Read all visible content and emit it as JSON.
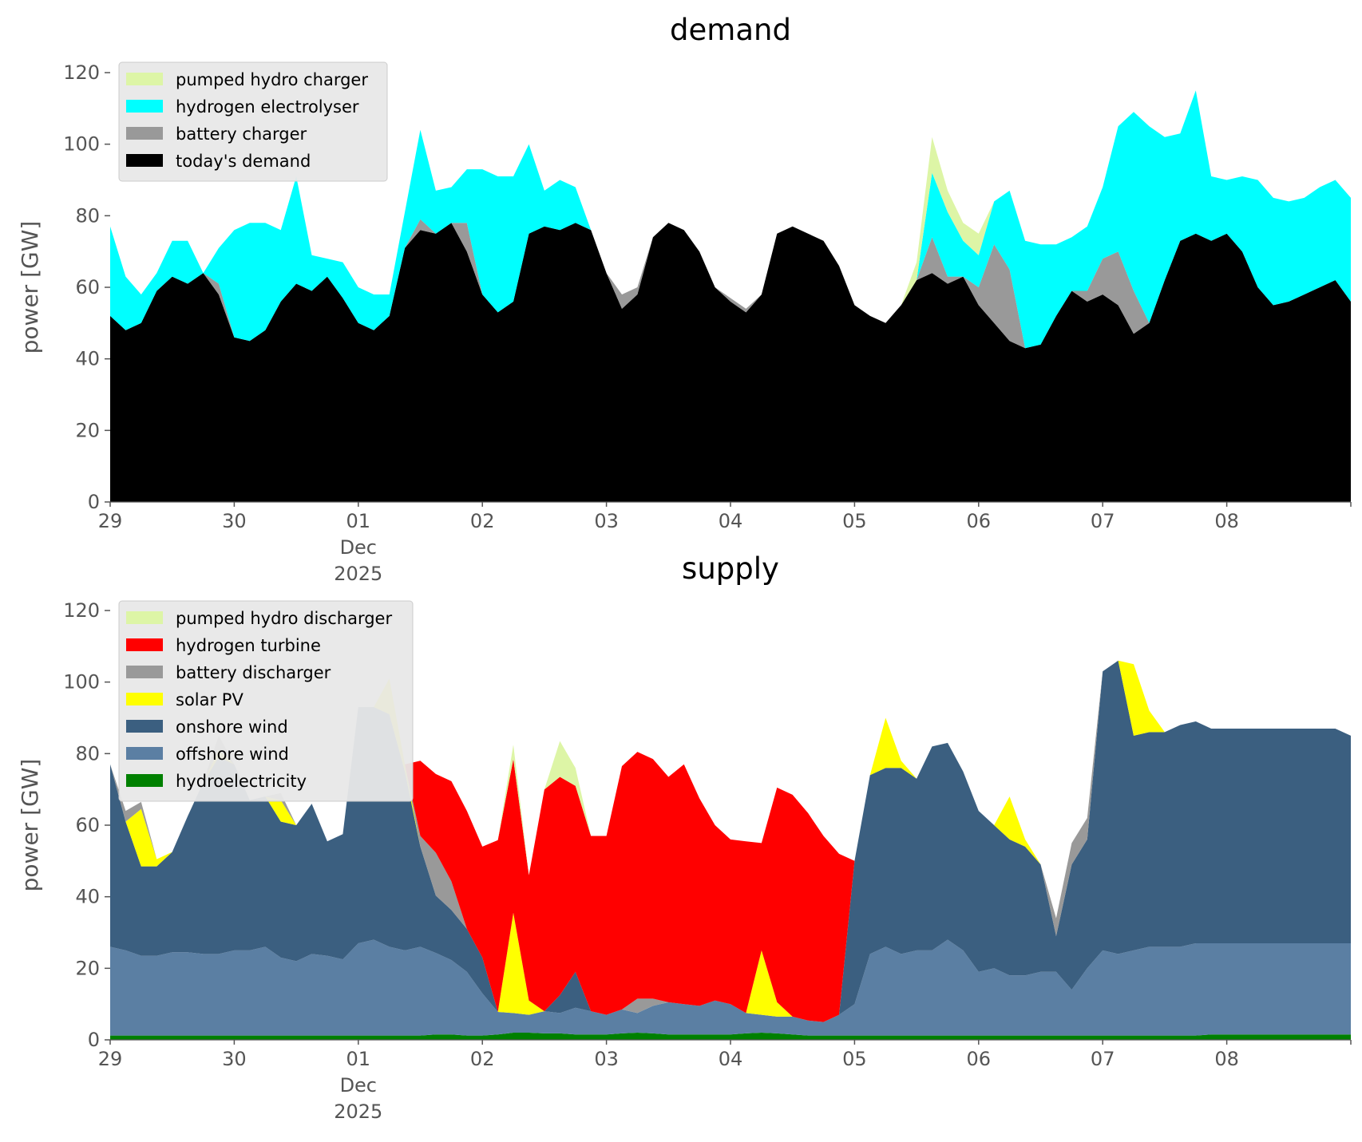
{
  "chart_data": [
    {
      "type": "area",
      "stacked": true,
      "title": "demand",
      "ylabel": "power [GW]",
      "xlabel": "",
      "ylim": [
        0,
        120
      ],
      "yticks": [
        0,
        20,
        40,
        60,
        80,
        100,
        120
      ],
      "xlim": [
        0,
        10
      ],
      "xtick_labels": [
        "29",
        "30",
        "01",
        "02",
        "03",
        "04",
        "05",
        "06",
        "07",
        "08"
      ],
      "xaxis_month": "Dec",
      "xaxis_year": "2025",
      "x_unit": "days since 29 Nov 2025 00:00",
      "grid": false,
      "legend_position": "top-left",
      "legend": [
        "pumped hydro charger",
        "hydrogen electrolyser",
        "battery charger",
        "today's demand"
      ],
      "x": [
        0,
        0.125,
        0.25,
        0.375,
        0.5,
        0.625,
        0.75,
        0.875,
        1,
        1.125,
        1.25,
        1.375,
        1.5,
        1.625,
        1.75,
        1.875,
        2,
        2.125,
        2.25,
        2.375,
        2.5,
        2.625,
        2.75,
        2.875,
        3,
        3.125,
        3.25,
        3.375,
        3.5,
        3.625,
        3.75,
        3.875,
        4,
        4.125,
        4.25,
        4.375,
        4.5,
        4.625,
        4.75,
        4.875,
        5,
        5.125,
        5.25,
        5.375,
        5.5,
        5.625,
        5.75,
        5.875,
        6,
        6.125,
        6.25,
        6.375,
        6.5,
        6.625,
        6.75,
        6.875,
        7,
        7.125,
        7.25,
        7.375,
        7.5,
        7.625,
        7.75,
        7.875,
        8,
        8.125,
        8.25,
        8.375,
        8.5,
        8.625,
        8.75,
        8.875,
        9,
        9.125,
        9.25,
        9.375,
        9.5,
        9.625,
        9.75,
        9.875,
        10
      ],
      "series": [
        {
          "name": "today's demand",
          "color": "#000000",
          "values": [
            52,
            48,
            50,
            59,
            63,
            61,
            64,
            58,
            46,
            45,
            48,
            56,
            61,
            59,
            63,
            57,
            50,
            48,
            52,
            71,
            76,
            75,
            78,
            70,
            58,
            53,
            56,
            75,
            77,
            76,
            78,
            76,
            64,
            54,
            58,
            74,
            78,
            76,
            70,
            60,
            56,
            53,
            58,
            75,
            77,
            75,
            73,
            66,
            55,
            52,
            50,
            55,
            62,
            64,
            61,
            63,
            55,
            50,
            45,
            43,
            44,
            52,
            59,
            56,
            58,
            55,
            47,
            50,
            62,
            73,
            75,
            73,
            75,
            70,
            60,
            55,
            56,
            58,
            60,
            62,
            56
          ]
        },
        {
          "name": "battery charger",
          "color": "#999999",
          "values": [
            0,
            0,
            0,
            0,
            0,
            0,
            0,
            3,
            0,
            0,
            0,
            0,
            0,
            0,
            0,
            0,
            0,
            0,
            0,
            0,
            3,
            0,
            0,
            8,
            0,
            0,
            0,
            0,
            0,
            0,
            0,
            0,
            0,
            4,
            2,
            0,
            0,
            0,
            0,
            0,
            1,
            1,
            0,
            0,
            0,
            0,
            0,
            0,
            0,
            0,
            0,
            0,
            0,
            10,
            2,
            0,
            5,
            22,
            20,
            0,
            0,
            0,
            0,
            3,
            10,
            15,
            12,
            0,
            0,
            0,
            0,
            0,
            0,
            0,
            0,
            0,
            0,
            0,
            0,
            0,
            0
          ]
        },
        {
          "name": "hydrogen electrolyser",
          "color": "#00ffff",
          "values": [
            25,
            15,
            8,
            5,
            10,
            12,
            0,
            10,
            30,
            33,
            30,
            20,
            30,
            10,
            5,
            10,
            10,
            10,
            6,
            10,
            25,
            12,
            10,
            15,
            35,
            38,
            35,
            25,
            10,
            14,
            10,
            0,
            0,
            0,
            0,
            0,
            0,
            0,
            0,
            0,
            0,
            0,
            0,
            0,
            0,
            0,
            0,
            0,
            0,
            0,
            0,
            0,
            0,
            18,
            18,
            10,
            9,
            12,
            22,
            30,
            28,
            20,
            15,
            18,
            20,
            35,
            50,
            55,
            40,
            30,
            40,
            18,
            15,
            21,
            30,
            30,
            28,
            27,
            28,
            28,
            29
          ]
        },
        {
          "name": "pumped hydro charger",
          "color": "#ddf5a6",
          "values": [
            0,
            0,
            0,
            0,
            0,
            0,
            0,
            0,
            0,
            0,
            0,
            0,
            0,
            0,
            0,
            0,
            0,
            0,
            0,
            0,
            0,
            0,
            0,
            0,
            0,
            0,
            0,
            0,
            0,
            0,
            0,
            0,
            0,
            0,
            0,
            0,
            0,
            0,
            0,
            0,
            0,
            0,
            0,
            0,
            0,
            0,
            0,
            0,
            0,
            0,
            0,
            0,
            5,
            10,
            6,
            5,
            6,
            0,
            0,
            0,
            0,
            0,
            0,
            0,
            0,
            0,
            0,
            0,
            0,
            0,
            0,
            0,
            0,
            0,
            0,
            0,
            0,
            0,
            0,
            0,
            0
          ]
        }
      ]
    },
    {
      "type": "area",
      "stacked": true,
      "title": "supply",
      "ylabel": "power [GW]",
      "xlabel": "",
      "ylim": [
        0,
        120
      ],
      "yticks": [
        0,
        20,
        40,
        60,
        80,
        100,
        120
      ],
      "xlim": [
        0,
        10
      ],
      "xtick_labels": [
        "29",
        "30",
        "01",
        "02",
        "03",
        "04",
        "05",
        "06",
        "07",
        "08"
      ],
      "xaxis_month": "Dec",
      "xaxis_year": "2025",
      "x_unit": "days since 29 Nov 2025 00:00",
      "grid": false,
      "legend_position": "top-left",
      "legend": [
        "pumped hydro discharger",
        "hydrogen turbine",
        "battery discharger",
        "solar PV",
        "onshore wind",
        "offshore wind",
        "hydroelectricity"
      ],
      "x": [
        0,
        0.125,
        0.25,
        0.375,
        0.5,
        0.625,
        0.75,
        0.875,
        1,
        1.125,
        1.25,
        1.375,
        1.5,
        1.625,
        1.75,
        1.875,
        2,
        2.125,
        2.25,
        2.375,
        2.5,
        2.625,
        2.75,
        2.875,
        3,
        3.125,
        3.25,
        3.375,
        3.5,
        3.625,
        3.75,
        3.875,
        4,
        4.125,
        4.25,
        4.375,
        4.5,
        4.625,
        4.75,
        4.875,
        5,
        5.125,
        5.25,
        5.375,
        5.5,
        5.625,
        5.75,
        5.875,
        6,
        6.125,
        6.25,
        6.375,
        6.5,
        6.625,
        6.75,
        6.875,
        7,
        7.125,
        7.25,
        7.375,
        7.5,
        7.625,
        7.75,
        7.875,
        8,
        8.125,
        8.25,
        8.375,
        8.5,
        8.625,
        8.75,
        8.875,
        9,
        9.125,
        9.25,
        9.375,
        9.5,
        9.625,
        9.75,
        9.875,
        10
      ],
      "series": [
        {
          "name": "hydroelectricity",
          "color": "#008000",
          "values": [
            1.2,
            1.2,
            1.2,
            1.2,
            1.2,
            1.2,
            1.2,
            1.2,
            1.2,
            1.2,
            1.2,
            1.2,
            1.2,
            1.2,
            1.2,
            1.2,
            1.2,
            1.2,
            1.2,
            1.2,
            1.2,
            1.5,
            1.5,
            1.2,
            1.2,
            1.5,
            2,
            2,
            1.8,
            1.8,
            1.5,
            1.5,
            1.5,
            1.8,
            2,
            1.8,
            1.5,
            1.5,
            1.5,
            1.5,
            1.5,
            1.8,
            2,
            1.8,
            1.5,
            1.2,
            1.2,
            1.2,
            1.2,
            1.2,
            1.2,
            1.2,
            1.2,
            1.2,
            1.2,
            1.2,
            1.2,
            1.2,
            1.2,
            1.2,
            1.2,
            1.2,
            1.2,
            1.2,
            1.2,
            1.2,
            1.2,
            1.2,
            1.2,
            1.2,
            1.2,
            1.5,
            1.5,
            1.5,
            1.5,
            1.5,
            1.5,
            1.5,
            1.5,
            1.5,
            1.5
          ]
        },
        {
          "name": "offshore wind",
          "color": "#5b7fa3",
          "values": [
            24.8,
            23.8,
            22.3,
            22.3,
            23.3,
            23.3,
            22.8,
            22.8,
            23.8,
            23.8,
            24.8,
            21.8,
            20.8,
            22.8,
            22.3,
            21.3,
            25.8,
            26.8,
            24.8,
            23.8,
            24.8,
            22.8,
            20.8,
            17.8,
            11.8,
            6.3,
            5.5,
            5,
            6.2,
            5.7,
            7.5,
            6.5,
            5.5,
            6.7,
            5.5,
            7.7,
            9,
            8.5,
            8,
            9.5,
            8.5,
            5.7,
            5,
            4.7,
            5,
            4.2,
            3.8,
            5.8,
            8.8,
            22.8,
            24.8,
            22.8,
            23.8,
            23.8,
            26.8,
            23.8,
            17.8,
            18.8,
            16.8,
            16.8,
            17.8,
            17.8,
            12.8,
            18.8,
            23.8,
            22.8,
            23.8,
            24.8,
            24.8,
            24.8,
            25.8,
            25.5,
            25.5,
            25.5,
            25.5,
            25.5,
            25.5,
            25.5,
            25.5,
            25.5,
            25.5
          ]
        },
        {
          "name": "onshore wind",
          "color": "#3b5f80",
          "values": [
            51,
            36,
            25,
            25,
            28,
            38,
            48,
            55,
            52,
            42,
            42,
            38,
            38,
            42,
            32,
            35,
            66,
            65,
            65,
            50,
            28,
            16,
            14,
            12,
            10,
            0,
            0,
            0,
            0,
            5,
            10,
            0,
            0,
            0,
            0,
            0,
            0,
            0,
            0,
            0,
            0,
            0,
            0,
            0,
            0,
            0,
            0,
            0,
            40,
            50,
            50,
            52,
            48,
            57,
            55,
            50,
            45,
            40,
            38,
            36,
            30,
            10,
            35,
            36,
            78,
            82,
            60,
            60,
            60,
            62,
            62,
            60,
            60,
            60,
            60,
            60,
            60,
            60,
            60,
            60,
            58
          ]
        },
        {
          "name": "solar PV",
          "color": "#ffff00",
          "values": [
            0,
            0,
            16,
            2,
            0,
            0,
            0,
            2,
            0,
            0,
            0,
            6,
            0,
            0,
            0,
            0,
            0,
            0,
            10,
            2,
            0,
            0,
            0,
            0,
            0,
            0,
            28,
            4,
            0,
            0,
            0,
            0,
            0,
            0,
            0,
            0,
            0,
            0,
            0,
            0,
            0,
            0,
            18,
            4,
            0,
            0,
            0,
            0,
            0,
            0,
            14,
            2,
            0,
            0,
            0,
            0,
            0,
            0,
            12,
            2,
            0,
            0,
            0,
            0,
            0,
            0,
            20,
            6,
            0,
            0,
            0,
            0,
            0,
            0,
            0,
            0,
            0,
            0,
            0,
            0,
            0
          ]
        },
        {
          "name": "battery discharger",
          "color": "#999999",
          "values": [
            0,
            3,
            2,
            0,
            0,
            0,
            0,
            4,
            0,
            0,
            0,
            2,
            0,
            0,
            0,
            0,
            0,
            0,
            0,
            0,
            3,
            12,
            8,
            0,
            0,
            0,
            0,
            0,
            0,
            0,
            0,
            0,
            0,
            0,
            4,
            2,
            0,
            0,
            0,
            0,
            0,
            0,
            0,
            0,
            0,
            0,
            0,
            0,
            0,
            0,
            0,
            0,
            0,
            0,
            0,
            0,
            0,
            0,
            0,
            0,
            0,
            5,
            6,
            6,
            0,
            0,
            0,
            0,
            0,
            0,
            0,
            0,
            0,
            0,
            0,
            0,
            0,
            0,
            0,
            0,
            0
          ]
        },
        {
          "name": "hydrogen turbine",
          "color": "#ff0000",
          "values": [
            0,
            0,
            0,
            0,
            0,
            0,
            0,
            0,
            0,
            0,
            0,
            0,
            0,
            0,
            0,
            0,
            0,
            0,
            0,
            0,
            21,
            22,
            28,
            33,
            31,
            48,
            43,
            35,
            62,
            61,
            52,
            49,
            50,
            68,
            69,
            67,
            63,
            67,
            58,
            49,
            46,
            48,
            30,
            60,
            62,
            58,
            52,
            45,
            0,
            0,
            0,
            0,
            0,
            0,
            0,
            0,
            0,
            0,
            0,
            0,
            0,
            0,
            0,
            0,
            0,
            0,
            0,
            0,
            0,
            0,
            0,
            0,
            0,
            0,
            0,
            0,
            0,
            0,
            0,
            0,
            0
          ]
        },
        {
          "name": "pumped hydro discharger",
          "color": "#ddf5a6",
          "values": [
            0,
            0,
            0,
            0,
            0,
            0,
            0,
            0,
            0,
            0,
            0,
            0,
            0,
            0,
            0,
            0,
            0,
            0,
            0,
            0,
            0,
            0,
            0,
            0,
            0,
            0,
            4,
            0,
            0,
            10,
            5,
            0,
            0,
            0,
            0,
            0,
            0,
            0,
            0,
            0,
            0,
            0,
            0,
            0,
            0,
            0,
            0,
            0,
            0,
            0,
            0,
            0,
            0,
            0,
            0,
            0,
            0,
            0,
            0,
            0,
            0,
            0,
            0,
            0,
            0,
            0,
            0,
            0,
            0,
            0,
            0,
            0,
            0,
            0,
            0,
            0,
            0,
            0,
            0,
            0,
            0
          ]
        }
      ]
    }
  ]
}
